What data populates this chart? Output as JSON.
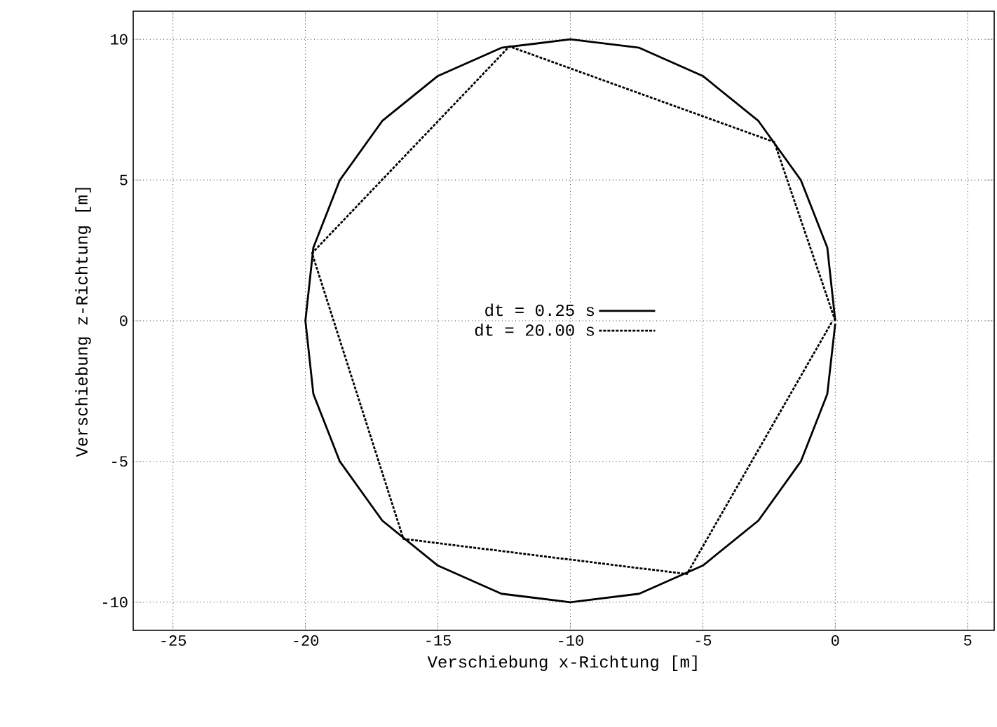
{
  "chart_data": {
    "type": "line",
    "xlabel": "Verschiebung x-Richtung [m]",
    "ylabel": "Verschiebung z-Richtung [m]",
    "xlim": [
      -26.5,
      6
    ],
    "ylim": [
      -11,
      11
    ],
    "xticks": [
      -25,
      -20,
      -15,
      -10,
      -5,
      0,
      5
    ],
    "yticks": [
      -10,
      -5,
      0,
      5,
      10
    ],
    "grid": true,
    "legend": "center",
    "marker": "none",
    "series": [
      {
        "name": "dt = 0.25 s",
        "color": "#000000",
        "line_style": "solid",
        "x": [
          0,
          -0.3,
          -1.3,
          -2.9,
          -5,
          -7.4,
          -10,
          -12.6,
          -15,
          -17.1,
          -18.7,
          -19.7,
          -20,
          -19.7,
          -18.7,
          -17.1,
          -15,
          -12.6,
          -10,
          -7.4,
          -5,
          -2.9,
          -1.3,
          -0.3,
          0
        ],
        "values": [
          0,
          2.6,
          5,
          7.1,
          8.7,
          9.7,
          10,
          9.7,
          8.7,
          7.1,
          5,
          2.6,
          0,
          -2.6,
          -5,
          -7.1,
          -8.7,
          -9.7,
          -10,
          -9.7,
          -8.7,
          -7.1,
          -5,
          -2.6,
          -0.1
        ]
      },
      {
        "name": "dt = 20.00 s",
        "color": "#000000",
        "line_style": "dotted",
        "x": [
          0,
          -2.3,
          -12.3,
          -19.75,
          -16.3,
          -5.6,
          -0.1
        ],
        "values": [
          0,
          6.35,
          9.75,
          2.4,
          -7.75,
          -9.0,
          0
        ]
      }
    ]
  }
}
